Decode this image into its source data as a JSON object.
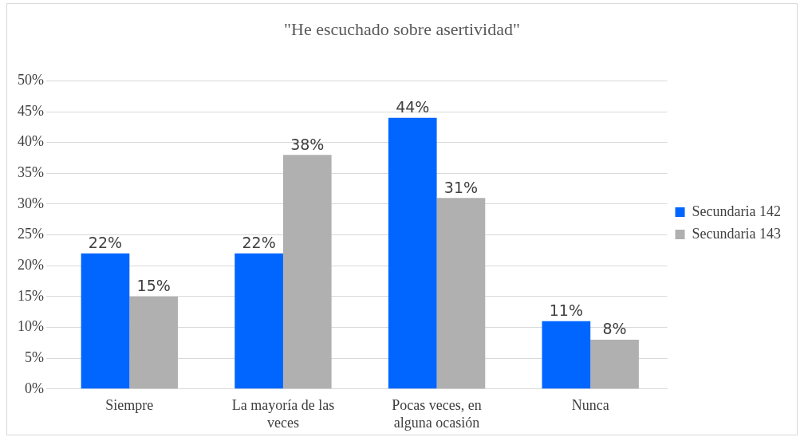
{
  "chart_data": {
    "type": "bar",
    "title": "\"He escuchado sobre asertividad\"",
    "categories": [
      "Siempre",
      "La mayoría de las veces",
      "Pocas veces, en alguna ocasión",
      "Nunca"
    ],
    "series": [
      {
        "name": "Secundaria 142",
        "color": "#0066ff",
        "values": [
          22,
          22,
          44,
          11
        ],
        "value_labels": [
          "22%",
          "22%",
          "44%",
          "11%"
        ]
      },
      {
        "name": "Secundaria 143",
        "color": "#b0b0b0",
        "values": [
          15,
          38,
          31,
          8
        ],
        "value_labels": [
          "15%",
          "38%",
          "31%",
          "8%"
        ]
      }
    ],
    "ylim": [
      0,
      50
    ],
    "yticks": [
      {
        "value": 0,
        "label": "0%"
      },
      {
        "value": 5,
        "label": "5%"
      },
      {
        "value": 10,
        "label": "10%"
      },
      {
        "value": 15,
        "label": "15%"
      },
      {
        "value": 20,
        "label": "20%"
      },
      {
        "value": 25,
        "label": "25%"
      },
      {
        "value": 30,
        "label": "30%"
      },
      {
        "value": 35,
        "label": "35%"
      },
      {
        "value": 40,
        "label": "40%"
      },
      {
        "value": 45,
        "label": "45%"
      },
      {
        "value": 50,
        "label": "50%"
      }
    ],
    "grid": "y",
    "legend": "right"
  }
}
